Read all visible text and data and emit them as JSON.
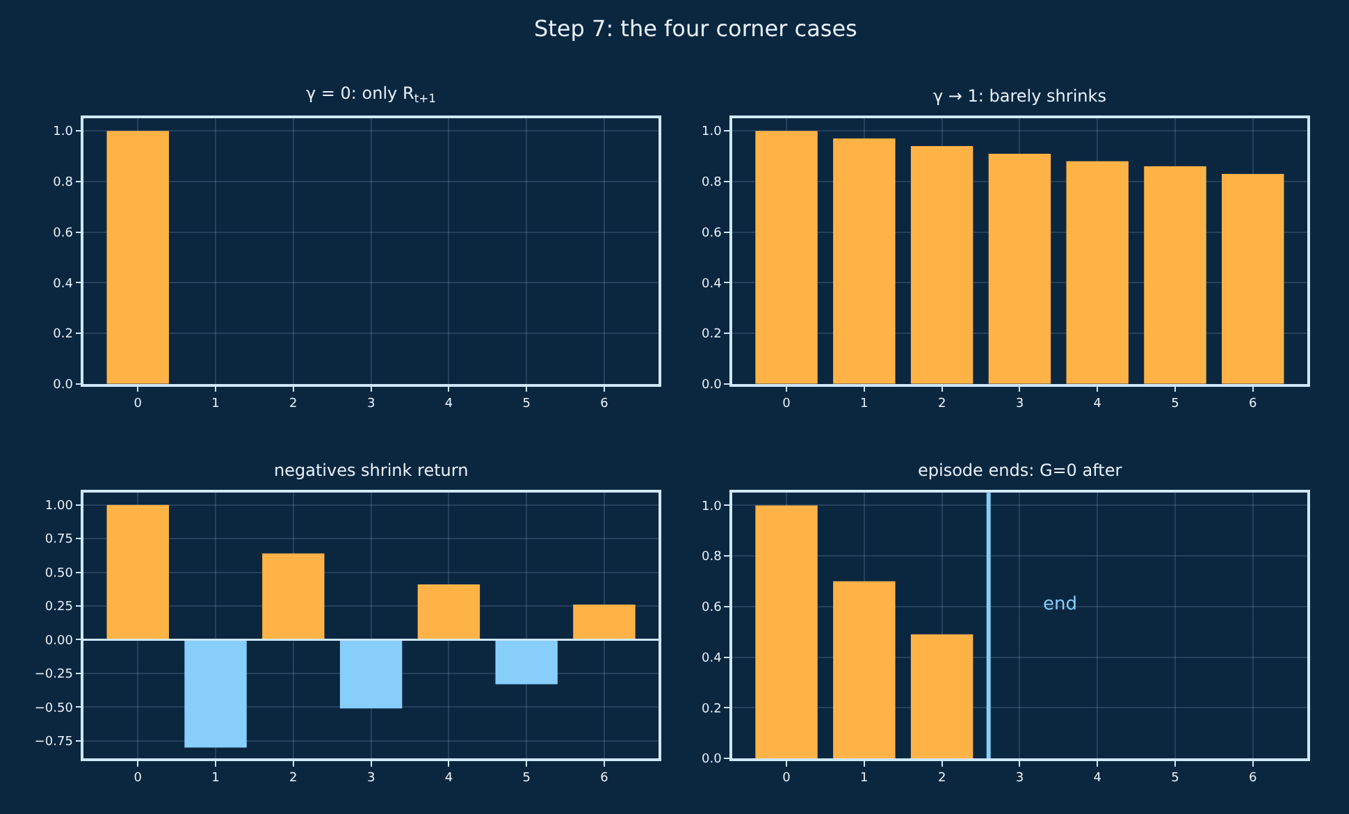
{
  "chart_data": [
    {
      "type": "bar",
      "title": "γ = 0: only R$_{t+1}$",
      "annotations": [
        "Step 7: the four corner cases"
      ],
      "x": [
        0,
        1,
        2,
        3,
        4,
        5,
        6
      ],
      "values": [
        1,
        0,
        0,
        0,
        0,
        0,
        0
      ],
      "color": "#ffb347",
      "xlim": [
        -0.7,
        6.7
      ],
      "xticks": [
        0,
        1,
        2,
        3,
        4,
        5,
        6
      ],
      "ylim": [
        0,
        1.05
      ],
      "yticks": [
        {
          "value": 0,
          "label": "0.0"
        },
        0.2,
        0.4,
        0.6,
        0.8,
        {
          "value": 1,
          "label": "1.0"
        }
      ],
      "grid": true
    },
    {
      "type": "bar",
      "title": "γ → 1: barely shrinks",
      "x": [
        0,
        1,
        2,
        3,
        4,
        5,
        6
      ],
      "values": [
        1,
        0.97,
        0.94,
        0.91,
        0.88,
        0.86,
        0.83
      ],
      "color": "#ffb347",
      "xlim": [
        -0.7,
        6.7
      ],
      "xticks": [
        0,
        1,
        2,
        3,
        4,
        5,
        6
      ],
      "ylim": [
        0,
        1.05
      ],
      "yticks": [
        {
          "value": 0,
          "label": "0.0"
        },
        0.2,
        0.4,
        0.6,
        0.8,
        {
          "value": 1,
          "label": "1.0"
        }
      ],
      "grid": true
    },
    {
      "type": "bar",
      "title": "negatives shrink return",
      "x": [
        0,
        1,
        2,
        3,
        4,
        5,
        6
      ],
      "values": [
        1,
        -0.8,
        0.64,
        -0.51,
        0.41,
        -0.33,
        0.26
      ],
      "colors": [
        "#ffb347",
        "#87cefa",
        "#ffb347",
        "#87cefa",
        "#ffb347",
        "#87cefa",
        "#ffb347"
      ],
      "xlim": [
        -0.7,
        6.7
      ],
      "xticks": [
        0,
        1,
        2,
        3,
        4,
        5,
        6
      ],
      "ylim": [
        -0.88,
        1.09
      ],
      "yticks": [
        {
          "value": -0.75,
          "label": "−0.75"
        },
        {
          "value": -0.5,
          "label": "−0.50"
        },
        {
          "value": -0.25,
          "label": "−0.25"
        },
        {
          "value": 0,
          "label": "0.00"
        },
        {
          "value": 0.25,
          "label": "0.25"
        },
        {
          "value": 0.5,
          "label": "0.50"
        },
        {
          "value": 0.75,
          "label": "0.75"
        },
        {
          "value": 1,
          "label": "1.00"
        }
      ],
      "ref_lines": [
        {
          "axis": "y",
          "value": 0,
          "color": "#cfe8ff"
        }
      ],
      "grid": true
    },
    {
      "type": "bar",
      "title": "episode ends: G=0 after",
      "x": [
        0,
        1,
        2,
        3,
        4,
        5,
        6
      ],
      "values": [
        1,
        0.7,
        0.49,
        0,
        0,
        0,
        0
      ],
      "color": "#ffb347",
      "xlim": [
        -0.7,
        6.7
      ],
      "xticks": [
        0,
        1,
        2,
        3,
        4,
        5,
        6
      ],
      "ylim": [
        0,
        1.05
      ],
      "yticks": [
        {
          "value": 0,
          "label": "0.0"
        },
        0.2,
        0.4,
        0.6,
        0.8,
        {
          "value": 1,
          "label": "1.0"
        }
      ],
      "ref_lines": [
        {
          "axis": "x",
          "value": 2.6,
          "color": "#87cefa"
        }
      ],
      "annotations": [
        "end"
      ],
      "grid": true
    }
  ]
}
